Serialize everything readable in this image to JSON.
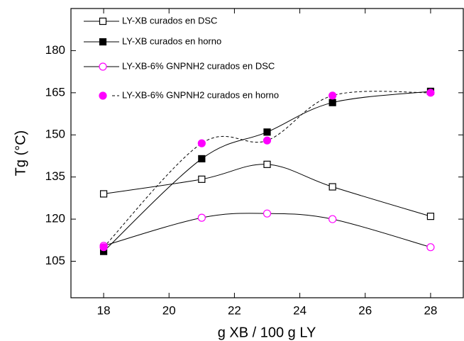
{
  "chart_data": {
    "type": "line",
    "x_label": "g XB / 100 g LY",
    "y_label": "Tg (°C)",
    "x": [
      18,
      21,
      23,
      25,
      28
    ],
    "xlim": [
      17,
      29
    ],
    "xticks": [
      18,
      20,
      22,
      24,
      26,
      28
    ],
    "ylim": [
      92,
      195
    ],
    "yticks": [
      105,
      120,
      135,
      150,
      165,
      180
    ],
    "legend": "upper left",
    "series": [
      {
        "name": "LY-XB curados en DSC",
        "color": "#000000",
        "marker": "square-open",
        "line_style": "solid",
        "values": [
          129,
          134.2,
          139.5,
          131.5,
          121
        ]
      },
      {
        "name": "LY-XB curados en horno",
        "color": "#000000",
        "marker": "square-filled",
        "line_style": "solid",
        "values": [
          108.5,
          141.5,
          151,
          161.5,
          165.5
        ]
      },
      {
        "name": "LY-XB-6% GNPNH2 curados en DSC",
        "color": "#ff00ff",
        "marker": "circle-open",
        "line_style": "solid",
        "values": [
          110.5,
          120.5,
          122,
          120,
          110
        ]
      },
      {
        "name": "LY-XB-6% GNPNH2 curados en horno",
        "color": "#ff00ff",
        "marker": "circle-filled",
        "line_style": "dashed",
        "values": [
          110,
          147,
          148,
          164,
          165
        ]
      }
    ]
  }
}
